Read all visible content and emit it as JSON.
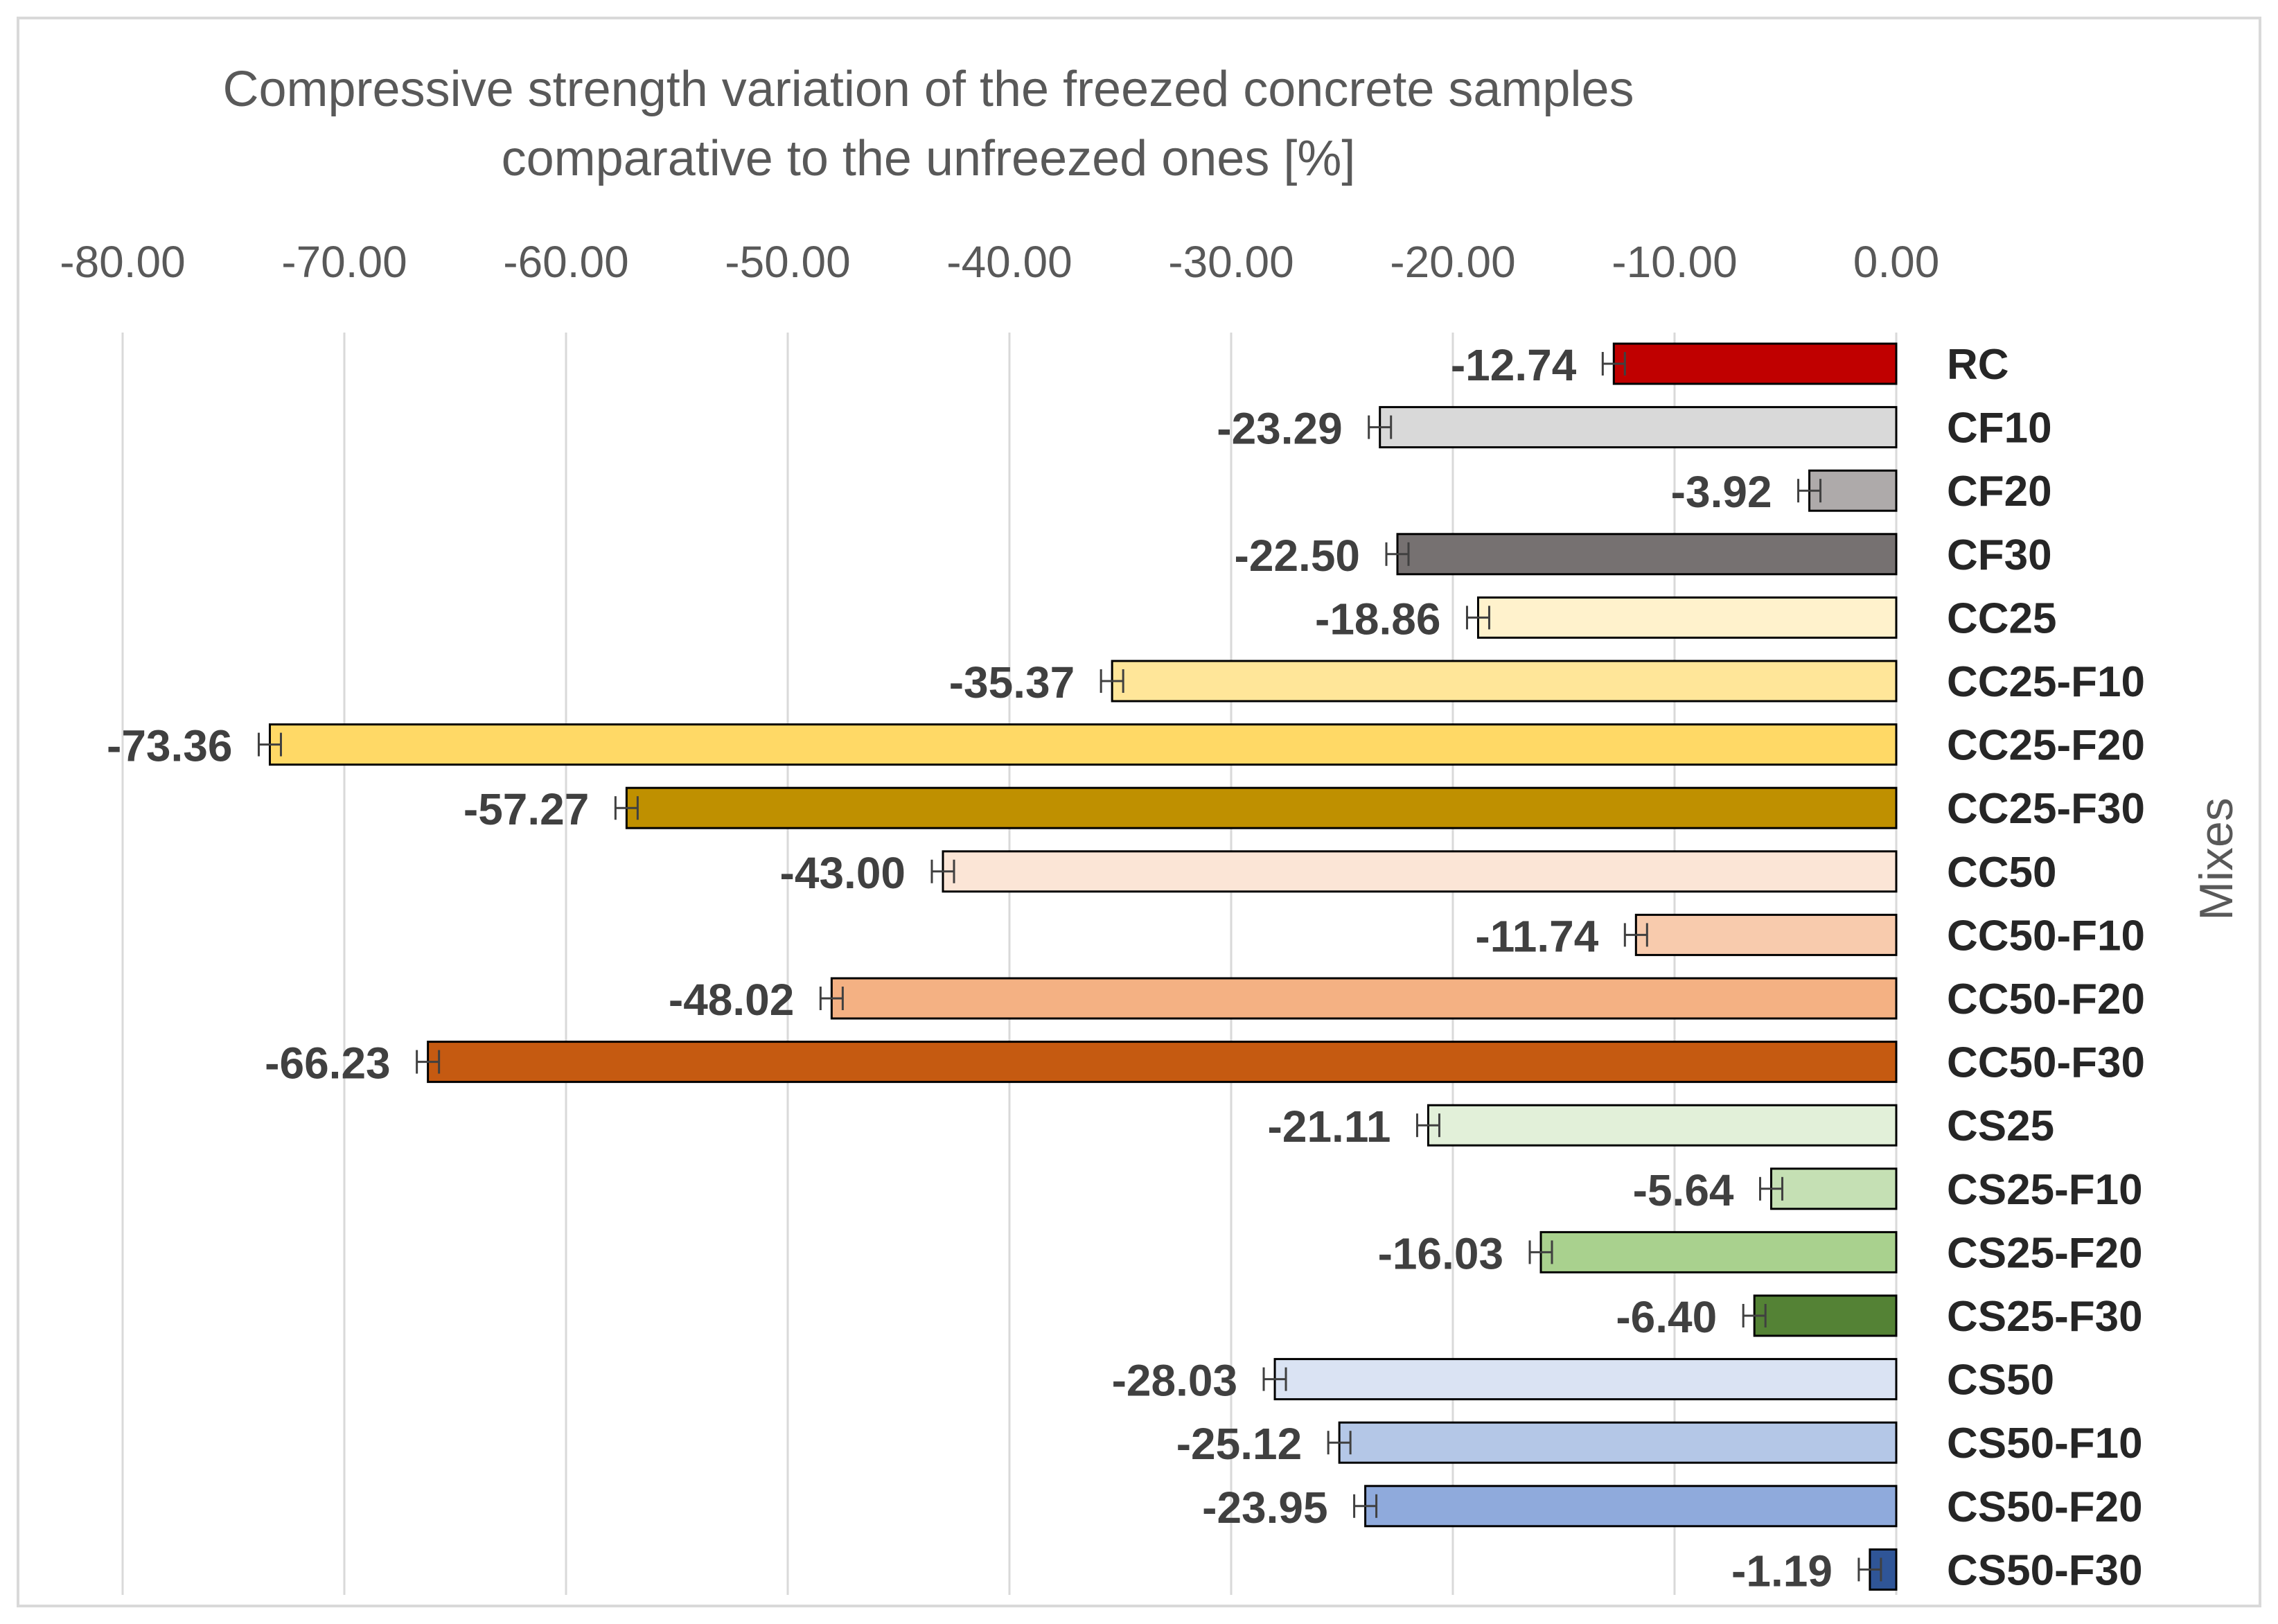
{
  "chart_data": {
    "type": "bar",
    "orientation": "horizontal",
    "title_lines": [
      "Compressive strength variation of the freezed concrete samples",
      "comparative to  the unfreezed ones [%]"
    ],
    "ylabel": "Mixes",
    "xlim": [
      -80,
      0
    ],
    "xticks": [
      -80,
      -70,
      -60,
      -50,
      -40,
      -30,
      -20,
      -10,
      0
    ],
    "xtick_labels": [
      "-80.00",
      "-70.00",
      "-60.00",
      "-50.00",
      "-40.00",
      "-30.00",
      "-20.00",
      "-10.00",
      "0.00"
    ],
    "grid": true,
    "categories": [
      "RC",
      "CF10",
      "CF20",
      "CF30",
      "CC25",
      "CC25-F10",
      "CC25-F20",
      "CC25-F30",
      "CC50",
      "CC50-F10",
      "CC50-F20",
      "CC50-F30",
      "CS25",
      "CS25-F10",
      "CS25-F20",
      "CS25-F30",
      "CS50",
      "CS50-F10",
      "CS50-F20",
      "CS50-F30"
    ],
    "values": [
      -12.74,
      -23.29,
      -3.92,
      -22.5,
      -18.86,
      -35.37,
      -73.36,
      -57.27,
      -43.0,
      -11.74,
      -48.02,
      -66.23,
      -21.11,
      -5.64,
      -16.03,
      -6.4,
      -28.03,
      -25.12,
      -23.95,
      -1.19
    ],
    "value_labels": [
      "-12.74",
      "-23.29",
      "-3.92",
      "-22.50",
      "-18.86",
      "-35.37",
      "-73.36",
      "-57.27",
      "-43.00",
      "-11.74",
      "-48.02",
      "-66.23",
      "-21.11",
      "-5.64",
      "-16.03",
      "-6.40",
      "-28.03",
      "-25.12",
      "-23.95",
      "-1.19"
    ],
    "error": 0.5,
    "colors": [
      "#c00000",
      "#d9d9d9",
      "#aeaaaa",
      "#767171",
      "#fff2cc",
      "#ffe699",
      "#ffd966",
      "#bf9000",
      "#fbe5d6",
      "#f8cbad",
      "#f4b183",
      "#c55a11",
      "#e2f0d9",
      "#c5e0b4",
      "#a9d18e",
      "#548235",
      "#dae3f3",
      "#b4c7e7",
      "#8faadc",
      "#2f5597"
    ]
  }
}
